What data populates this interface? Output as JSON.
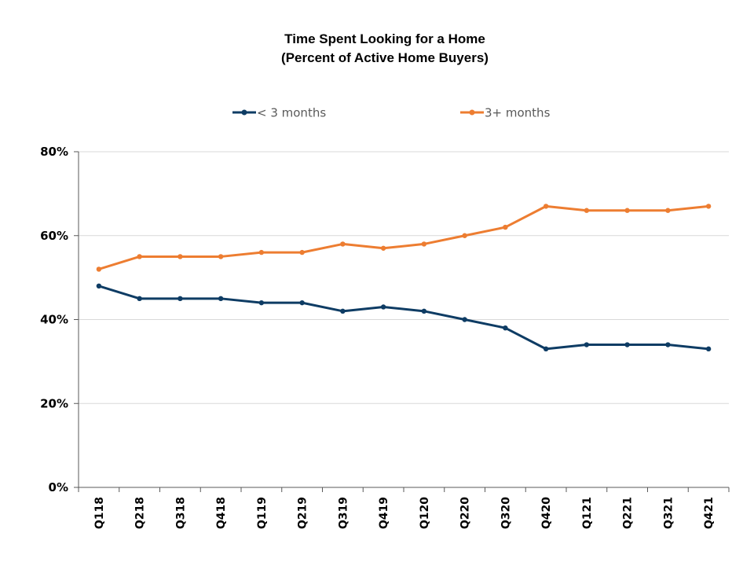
{
  "chart_data": {
    "type": "line",
    "title": "Time Spent Looking for a Home",
    "subtitle": "(Percent of Active Home Buyers)",
    "xlabel": "",
    "ylabel": "",
    "categories": [
      "Q118",
      "Q218",
      "Q318",
      "Q418",
      "Q119",
      "Q219",
      "Q319",
      "Q419",
      "Q120",
      "Q220",
      "Q320",
      "Q420",
      "Q121",
      "Q221",
      "Q321",
      "Q421"
    ],
    "ylim": [
      0,
      80
    ],
    "yticks": [
      0,
      20,
      40,
      60,
      80
    ],
    "ytick_labels": [
      "0%",
      "20%",
      "40%",
      "60%",
      "80%"
    ],
    "grid": true,
    "legend_position": "top",
    "series": [
      {
        "name": "< 3 months",
        "color": "#0e3c64",
        "values": [
          48,
          45,
          45,
          45,
          44,
          44,
          42,
          43,
          42,
          40,
          38,
          33,
          34,
          34,
          34,
          33
        ]
      },
      {
        "name": "3+ months",
        "color": "#ed7d31",
        "values": [
          52,
          55,
          55,
          55,
          56,
          56,
          58,
          57,
          58,
          60,
          62,
          67,
          66,
          66,
          66,
          67
        ]
      }
    ]
  }
}
